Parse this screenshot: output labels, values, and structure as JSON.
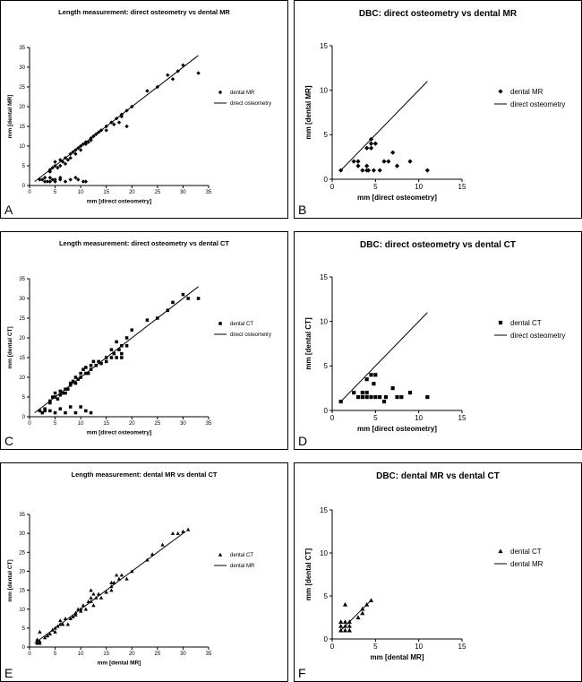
{
  "chart_data": [
    {
      "panel": "A",
      "type": "scatter",
      "title": "Length measurement: direct osteometry vs dental MR",
      "xlabel": "mm [direct osteometry]",
      "ylabel": "mm [dental MR]",
      "xlim": [
        0,
        35
      ],
      "ylim": [
        0,
        35
      ],
      "xticks": [
        0,
        5,
        10,
        15,
        20,
        25,
        30,
        35
      ],
      "yticks": [
        0,
        5,
        10,
        15,
        20,
        25,
        30,
        35
      ],
      "series": [
        {
          "name": "dental MR",
          "marker": "diamond",
          "x": [
            2,
            3,
            4,
            4,
            4.5,
            5,
            5,
            5.5,
            6,
            6,
            6.5,
            7,
            7,
            7.5,
            8,
            8,
            8.5,
            9,
            9,
            9.5,
            10,
            10,
            10.5,
            11,
            11,
            11.5,
            12,
            12,
            12.5,
            13,
            13.5,
            14,
            15,
            15,
            16,
            16.5,
            17,
            17.5,
            18,
            18,
            19,
            19,
            20,
            23,
            25,
            27,
            28,
            29,
            30,
            33,
            3,
            4,
            4.5,
            5,
            6,
            7,
            8,
            9,
            10.5,
            4,
            5,
            6,
            9.5,
            11,
            2.5,
            3.5
          ],
          "y": [
            1.5,
            2,
            3.5,
            4,
            4.5,
            5,
            6,
            4.5,
            5,
            6.5,
            6,
            7,
            5.5,
            6.5,
            8,
            7,
            8.5,
            9,
            8,
            9.5,
            10,
            9,
            10.5,
            11,
            10.5,
            11,
            12,
            11.5,
            12.5,
            13,
            13.5,
            14,
            15,
            14,
            16,
            15.5,
            17,
            16,
            18,
            17.5,
            19,
            15,
            20,
            24,
            25,
            28,
            27,
            29,
            30.5,
            28.5,
            1,
            1,
            1.5,
            1,
            1.5,
            1,
            1.5,
            2,
            1,
            2,
            1.5,
            2,
            1.5,
            1,
            1.5,
            1
          ]
        },
        {
          "name": "direct osteometry",
          "marker": "line",
          "x": [
            1,
            33
          ],
          "y": [
            1,
            33
          ]
        }
      ]
    },
    {
      "panel": "B",
      "type": "scatter",
      "title": "DBC: direct osteometry vs dental MR",
      "xlabel": "mm [direct osteometry]",
      "ylabel": "mm [dental MR]",
      "xlim": [
        0,
        15
      ],
      "ylim": [
        0,
        15
      ],
      "xticks": [
        0,
        5,
        10,
        15
      ],
      "yticks": [
        0,
        5,
        10,
        15
      ],
      "series": [
        {
          "name": "dental MR",
          "marker": "diamond",
          "x": [
            1,
            2.5,
            3,
            3,
            3.5,
            4,
            4,
            4,
            4.2,
            4.5,
            4.5,
            4.5,
            4.8,
            5,
            5.5,
            6,
            6.5,
            7,
            7.5,
            9,
            11
          ],
          "y": [
            1,
            2,
            2,
            1.5,
            1,
            3.5,
            1.5,
            1,
            1,
            4,
            4.5,
            3.5,
            1,
            4,
            1,
            2,
            2,
            3,
            1.5,
            2,
            1
          ]
        },
        {
          "name": "direct osteometry",
          "marker": "line",
          "x": [
            1,
            11
          ],
          "y": [
            1,
            11
          ]
        }
      ]
    },
    {
      "panel": "C",
      "type": "scatter",
      "title": "Length measurement: direct osteometry vs dental CT",
      "xlabel": "mm [direct osteometry]",
      "ylabel": "mm [dental CT]",
      "xlim": [
        0,
        35
      ],
      "ylim": [
        0,
        35
      ],
      "xticks": [
        0,
        5,
        10,
        15,
        20,
        25,
        30,
        35
      ],
      "yticks": [
        0,
        5,
        10,
        15,
        20,
        25,
        30,
        35
      ],
      "series": [
        {
          "name": "dental CT",
          "marker": "square",
          "x": [
            2,
            3,
            4,
            4,
            4.5,
            5,
            5,
            5.5,
            6,
            6,
            6.5,
            7,
            7,
            7.5,
            8,
            8,
            8.5,
            9,
            9,
            9.5,
            10,
            10,
            10.5,
            11,
            11,
            11.5,
            12,
            12,
            12.5,
            13,
            13.5,
            14,
            15,
            15,
            16,
            16.5,
            17,
            17.5,
            18,
            18,
            19,
            19,
            20,
            23,
            25,
            27,
            28,
            30,
            31,
            33,
            4,
            5,
            6,
            7,
            8,
            9,
            10,
            11,
            12,
            2.5,
            3,
            16,
            17,
            18
          ],
          "y": [
            1.5,
            2,
            3.5,
            4,
            5,
            5,
            6,
            4.5,
            5.5,
            6.5,
            6,
            7,
            6,
            7,
            8,
            8.5,
            9,
            8.5,
            10,
            9.5,
            10,
            11,
            12,
            11,
            12.5,
            11,
            13,
            12,
            14,
            13,
            14,
            13.5,
            15,
            14,
            17,
            16,
            19,
            17,
            18,
            15,
            20,
            18,
            22,
            24.5,
            25,
            27,
            29,
            31,
            30,
            30,
            1.5,
            1,
            2,
            1,
            2.5,
            1,
            2.5,
            1.5,
            1,
            1,
            1.5,
            15,
            15,
            16
          ]
        },
        {
          "name": "direct osteometry",
          "marker": "line",
          "x": [
            1,
            33
          ],
          "y": [
            1,
            33
          ]
        }
      ]
    },
    {
      "panel": "D",
      "type": "scatter",
      "title": "DBC: direct osteometry vs dental CT",
      "xlabel": "mm [direct osteometry]",
      "ylabel": "mm [dental CT]",
      "xlim": [
        0,
        15
      ],
      "ylim": [
        0,
        15
      ],
      "xticks": [
        0,
        5,
        10,
        15
      ],
      "yticks": [
        0,
        5,
        10,
        15
      ],
      "series": [
        {
          "name": "dental CT",
          "marker": "square",
          "x": [
            1,
            2.5,
            3,
            3.5,
            3.5,
            4,
            4,
            4,
            4.5,
            4.5,
            4.8,
            5,
            5,
            5.5,
            6,
            6.2,
            7,
            7.5,
            8,
            9,
            11
          ],
          "y": [
            1,
            2,
            1.5,
            2,
            1.5,
            3.5,
            2,
            1.5,
            4,
            1.5,
            3,
            4,
            1.5,
            1.5,
            1,
            1.5,
            2.5,
            1.5,
            1.5,
            2,
            1.5
          ]
        },
        {
          "name": "direct osteometry",
          "marker": "line",
          "x": [
            1,
            11
          ],
          "y": [
            1,
            11
          ]
        }
      ]
    },
    {
      "panel": "E",
      "type": "scatter",
      "title": "Length measurement: dental MR vs dental CT",
      "xlabel": "mm [dental MR]",
      "ylabel": "mm [dental CT]",
      "xlim": [
        0,
        35
      ],
      "ylim": [
        0,
        35
      ],
      "xticks": [
        0,
        5,
        10,
        15,
        20,
        25,
        30,
        35
      ],
      "yticks": [
        0,
        5,
        10,
        15,
        20,
        25,
        30,
        35
      ],
      "series": [
        {
          "name": "dental CT",
          "marker": "triangle",
          "x": [
            1.5,
            1.5,
            2,
            2,
            3,
            3.5,
            4,
            4.5,
            5,
            5,
            5.5,
            6,
            6,
            6.5,
            7,
            7.5,
            8,
            8.5,
            9,
            9,
            9.5,
            10,
            10,
            10.5,
            11,
            11.5,
            12,
            12,
            12.5,
            13,
            13.5,
            14,
            15,
            16,
            16,
            16.5,
            17,
            17.5,
            18,
            19,
            20,
            23,
            24,
            26,
            28,
            29,
            30,
            31,
            1.5,
            2,
            12,
            16,
            12.5
          ],
          "y": [
            1,
            2,
            1.5,
            4,
            2.5,
            3,
            3.5,
            4.5,
            4,
            5,
            5.5,
            6,
            7,
            6,
            7.5,
            6,
            7.5,
            8,
            9,
            8.5,
            10,
            9.5,
            10,
            11,
            10,
            12,
            12,
            13,
            11,
            13,
            14,
            13,
            14.5,
            16,
            17,
            17,
            19,
            18,
            19,
            18,
            20,
            23,
            24.5,
            27,
            30,
            30,
            30.5,
            31,
            1.5,
            1,
            15,
            15,
            14
          ]
        },
        {
          "name": "dental MR",
          "marker": "line",
          "x": [
            1,
            30.5
          ],
          "y": [
            1,
            30.5
          ]
        }
      ]
    },
    {
      "panel": "F",
      "type": "scatter",
      "title": "DBC: dental MR vs dental CT",
      "xlabel": "mm [dental MR]",
      "ylabel": "mm [dental CT]",
      "xlim": [
        0,
        15
      ],
      "ylim": [
        0,
        15
      ],
      "xticks": [
        0,
        5,
        10,
        15
      ],
      "yticks": [
        0,
        5,
        10,
        15
      ],
      "series": [
        {
          "name": "dental CT",
          "marker": "triangle",
          "x": [
            1,
            1,
            1,
            1.5,
            1.5,
            1.5,
            2,
            2,
            2,
            3,
            3.5,
            3.5,
            4,
            4.5,
            1.5
          ],
          "y": [
            1,
            1.5,
            2,
            1,
            1.5,
            2,
            1,
            1.5,
            2,
            2.5,
            3,
            3.5,
            4,
            4.5,
            4
          ]
        },
        {
          "name": "dental MR",
          "marker": "line",
          "x": [
            1,
            4.5
          ],
          "y": [
            1,
            4.5
          ]
        }
      ]
    }
  ]
}
